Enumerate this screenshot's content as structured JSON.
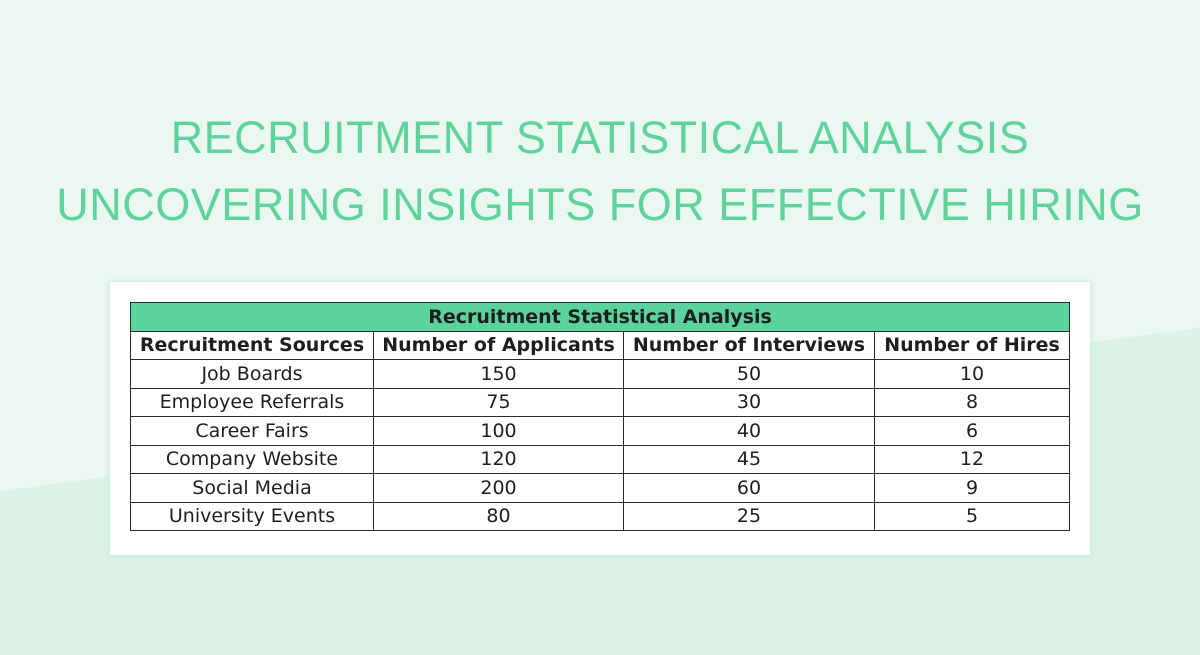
{
  "page": {
    "title_line1": "RECRUITMENT STATISTICAL ANALYSIS",
    "title_line2": "UNCOVERING INSIGHTS FOR EFFECTIVE HIRING",
    "colors": {
      "title": "#5fd39b",
      "table_header_fill": "#5cd39d",
      "background": "#e6f7ef"
    }
  },
  "table": {
    "caption": "Recruitment Statistical Analysis",
    "columns": [
      "Recruitment Sources",
      "Number of Applicants",
      "Number of Interviews",
      "Number of Hires"
    ],
    "rows": [
      [
        "Job Boards",
        "150",
        "50",
        "10"
      ],
      [
        "Employee Referrals",
        "75",
        "30",
        "8"
      ],
      [
        "Career Fairs",
        "100",
        "40",
        "6"
      ],
      [
        "Company Website",
        "120",
        "45",
        "12"
      ],
      [
        "Social Media",
        "200",
        "60",
        "9"
      ],
      [
        "University Events",
        "80",
        "25",
        "5"
      ]
    ]
  }
}
